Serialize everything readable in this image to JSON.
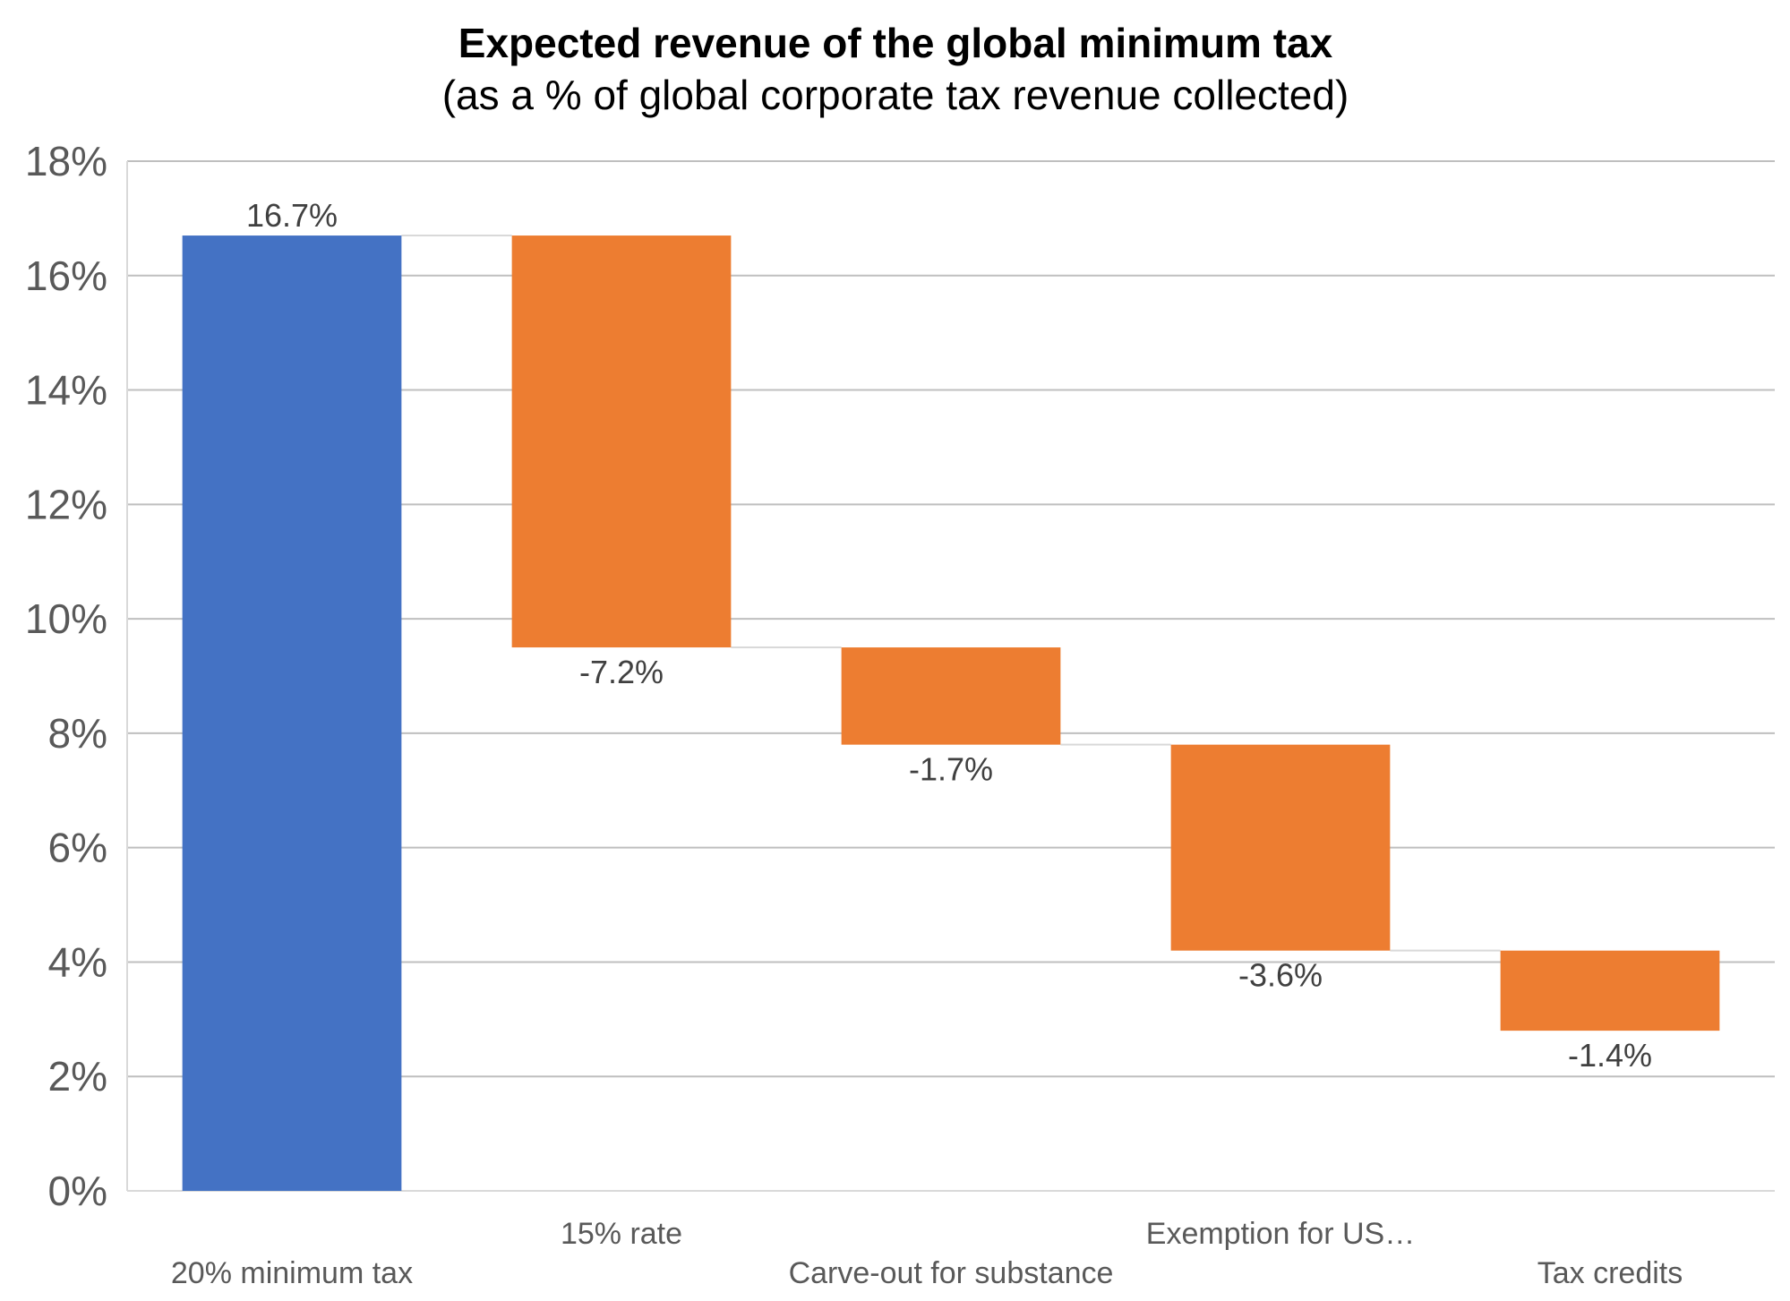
{
  "chart_data": {
    "type": "waterfall",
    "title": "Expected revenue of the global minimum tax",
    "subtitle": "(as a % of global corporate tax revenue collected)",
    "categories": [
      "20% minimum tax",
      "15% rate",
      "Carve-out for substance",
      "Exemption for US…",
      "Tax credits"
    ],
    "values": [
      16.7,
      -7.2,
      -1.7,
      -3.6,
      -1.4
    ],
    "value_labels": [
      "16.7%",
      "-7.2%",
      "-1.7%",
      "-3.6%",
      "-1.4%"
    ],
    "kinds": [
      "total",
      "decrease",
      "decrease",
      "decrease",
      "decrease"
    ],
    "ylim": [
      0,
      18
    ],
    "yticks": [
      {
        "value": 0,
        "label": "0%"
      },
      {
        "value": 2,
        "label": "2%"
      },
      {
        "value": 4,
        "label": "4%"
      },
      {
        "value": 6,
        "label": "6%"
      },
      {
        "value": 8,
        "label": "8%"
      },
      {
        "value": 10,
        "label": "10%"
      },
      {
        "value": 12,
        "label": "12%"
      },
      {
        "value": 14,
        "label": "14%"
      },
      {
        "value": 16,
        "label": "16%"
      },
      {
        "value": 18,
        "label": "18%"
      }
    ],
    "grid": true,
    "colors": {
      "total": "#4472C4",
      "decrease": "#ED7D31",
      "grid": "#BFBFBF",
      "connector": "#D9D9D9"
    }
  }
}
